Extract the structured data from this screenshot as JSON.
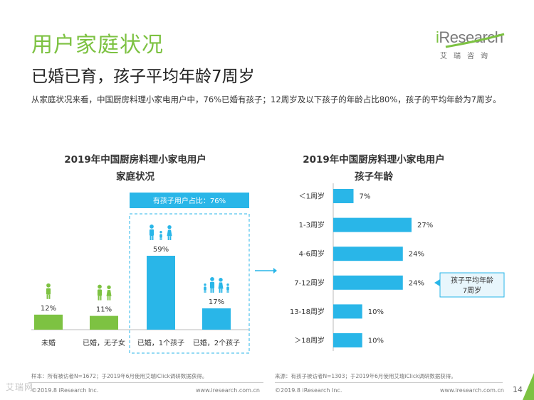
{
  "header": {
    "title": "用户家庭状况",
    "subtitle": "已婚已育，孩子平均年龄7周岁",
    "intro": "从家庭状况来看，中国厨房料理小家电用户中，76%已婚有孩子；12周岁及以下孩子的年龄占比80%，孩子的平均年龄为7周岁。"
  },
  "logo": {
    "brand_i": "i",
    "brand_rest": "Research",
    "brand_cn": "艾瑞咨询"
  },
  "colors": {
    "green": "#7dc242",
    "blue": "#29b6e8",
    "dark_gray": "#333333"
  },
  "left_chart": {
    "title_line1": "2019年中国厨房料理小家电用户",
    "title_line2": "家庭状况",
    "highlight_label": "有孩子用户占比：76%",
    "icons": [
      "single-person-icon",
      "couple-icon",
      "family-one-child-icon",
      "family-two-children-icon"
    ]
  },
  "right_chart": {
    "title_line1": "2019年中国厨房料理小家电用户",
    "title_line2": "孩子年龄",
    "callout": "孩子平均年龄\n7周岁"
  },
  "chart_data": [
    {
      "type": "bar",
      "title": "2019年中国厨房料理小家电用户家庭状况",
      "categories": [
        "未婚",
        "已婚，无子女",
        "已婚，1个孩子",
        "已婚，2个孩子"
      ],
      "values": [
        12,
        11,
        59,
        17
      ],
      "value_labels": [
        "12%",
        "11%",
        "59%",
        "17%"
      ],
      "colors": [
        "#7dc242",
        "#7dc242",
        "#29b6e8",
        "#29b6e8"
      ],
      "ylim": [
        0,
        59
      ]
    },
    {
      "type": "bar",
      "orientation": "horizontal",
      "title": "2019年中国厨房料理小家电用户孩子年龄",
      "categories": [
        "＜1周岁",
        "1-3周岁",
        "4-6周岁",
        "7-12周岁",
        "13-18周岁",
        "＞18周岁"
      ],
      "values": [
        7,
        27,
        24,
        24,
        10,
        10
      ],
      "value_labels": [
        "7%",
        "27%",
        "24%",
        "24%",
        "10%",
        "10%"
      ],
      "xlim": [
        0,
        27
      ]
    }
  ],
  "footnotes": {
    "left": "样本：所有被访者N=1672；于2019年6月使用艾瑞iClick调研数据获得。",
    "right": "来源：有孩子被访者N=1303；于2019年6月使用艾瑞iClick调研数据获得。"
  },
  "footer": {
    "left_copy": "©2019.8 iResearch Inc.",
    "left_url": "www.iresearch.com.cn",
    "right_copy": "©2019.8 iResearch Inc.",
    "right_url": "www.iresearch.com.cn",
    "page_number": "14"
  },
  "watermark": "艾瑞网"
}
